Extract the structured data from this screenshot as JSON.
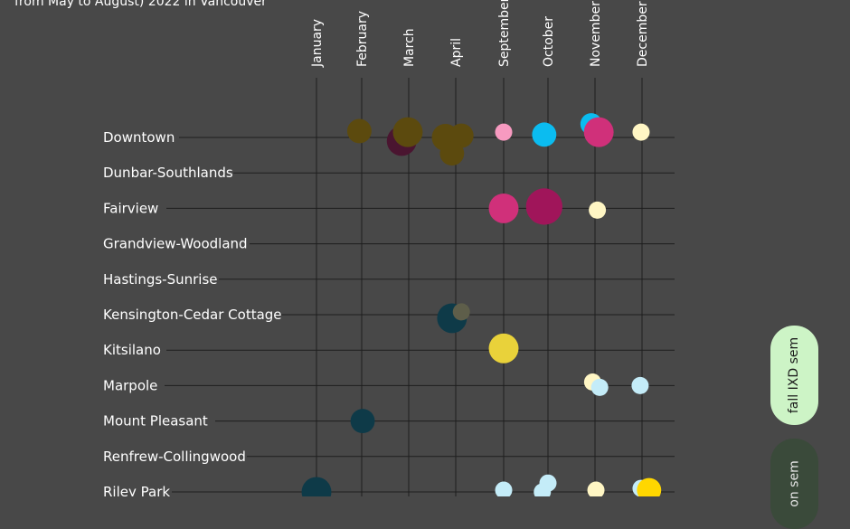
{
  "subtitle": "from May to August) 2022 in Vancouver",
  "legend": {
    "fall": {
      "label": "fall IXD sem",
      "color": "#cdf4c6"
    },
    "other": {
      "label": "on sem",
      "color": "#3a4a3a"
    }
  },
  "chart_data": {
    "type": "scatter",
    "grid": true,
    "months": [
      "January",
      "February",
      "March",
      "April",
      "September",
      "October",
      "November",
      "December"
    ],
    "neighbourhoods": [
      "Downtown",
      "Dunbar-Southlands",
      "Fairview",
      "Grandview-Woodland",
      "Hastings-Sunrise",
      "Kensington-Cedar Cottage",
      "Kitsilano",
      "Marpole",
      "Mount Pleasant",
      "Renfrew-Collingwood",
      "Riley Park"
    ],
    "points": [
      {
        "month": "February",
        "row": "Downtown",
        "dx": -0.05,
        "dy": -0.18,
        "size": 2,
        "color": "#5c4a0e"
      },
      {
        "month": "March",
        "row": "Downtown",
        "dx": -0.15,
        "dy": 0.1,
        "size": 3,
        "color": "#4a1530"
      },
      {
        "month": "March",
        "row": "Downtown",
        "dx": -0.02,
        "dy": -0.15,
        "size": 3,
        "color": "#5c4a0e"
      },
      {
        "month": "April",
        "row": "Downtown",
        "dx": -0.22,
        "dy": 0.0,
        "size": 2.5,
        "color": "#5c4a0e"
      },
      {
        "month": "April",
        "row": "Downtown",
        "dx": 0.12,
        "dy": -0.05,
        "size": 2,
        "color": "#5c4a0e"
      },
      {
        "month": "April",
        "row": "Downtown",
        "dx": -0.08,
        "dy": 0.45,
        "size": 2,
        "color": "#5c4a0e"
      },
      {
        "month": "September",
        "row": "Downtown",
        "dx": 0.0,
        "dy": -0.15,
        "size": 1,
        "color": "#f79ac0"
      },
      {
        "month": "October",
        "row": "Downtown",
        "dx": -0.08,
        "dy": -0.08,
        "size": 2,
        "color": "#0bbcf0"
      },
      {
        "month": "November",
        "row": "Downtown",
        "dx": -0.08,
        "dy": -0.38,
        "size": 1.6,
        "color": "#0bbcf0"
      },
      {
        "month": "November",
        "row": "Downtown",
        "dx": 0.08,
        "dy": -0.15,
        "size": 3,
        "color": "#d0307a"
      },
      {
        "month": "December",
        "row": "Downtown",
        "dx": -0.02,
        "dy": -0.15,
        "size": 1,
        "color": "#fff6c4"
      },
      {
        "month": "September",
        "row": "Fairview",
        "dx": 0.0,
        "dy": 0.0,
        "size": 3,
        "color": "#d0307a"
      },
      {
        "month": "October",
        "row": "Fairview",
        "dx": -0.08,
        "dy": -0.05,
        "size": 4.5,
        "color": "#a0155a"
      },
      {
        "month": "November",
        "row": "Fairview",
        "dx": 0.05,
        "dy": 0.05,
        "size": 1,
        "color": "#fff6c4"
      },
      {
        "month": "April",
        "row": "Kensington-Cedar Cottage",
        "dx": -0.08,
        "dy": 0.1,
        "size": 3,
        "color": "#0e3a48"
      },
      {
        "month": "April",
        "row": "Kensington-Cedar Cottage",
        "dx": 0.12,
        "dy": -0.08,
        "size": 1,
        "color": "#5e5e4a"
      },
      {
        "month": "September",
        "row": "Kitsilano",
        "dx": 0.0,
        "dy": -0.05,
        "size": 3,
        "color": "#e9d23a"
      },
      {
        "month": "November",
        "row": "Marpole",
        "dx": -0.05,
        "dy": -0.1,
        "size": 1,
        "color": "#fff6c4"
      },
      {
        "month": "November",
        "row": "Marpole",
        "dx": 0.1,
        "dy": 0.05,
        "size": 1,
        "color": "#c4ecf8"
      },
      {
        "month": "December",
        "row": "Marpole",
        "dx": -0.04,
        "dy": 0.0,
        "size": 1,
        "color": "#c4ecf8"
      },
      {
        "month": "February",
        "row": "Mount Pleasant",
        "dx": 0.02,
        "dy": 0.0,
        "size": 2,
        "color": "#0e3a48"
      },
      {
        "month": "January",
        "row": "Riley Park",
        "dx": 0.0,
        "dy": 0.0,
        "size": 3,
        "color": "#0e3a48"
      },
      {
        "month": "September",
        "row": "Riley Park",
        "dx": 0.0,
        "dy": -0.05,
        "size": 1,
        "color": "#c4ecf8"
      },
      {
        "month": "October",
        "row": "Riley Park",
        "dx": 0.0,
        "dy": -0.25,
        "size": 1,
        "color": "#c4ecf8"
      },
      {
        "month": "October",
        "row": "Riley Park",
        "dx": -0.12,
        "dy": 0.0,
        "size": 1,
        "color": "#c4ecf8"
      },
      {
        "month": "November",
        "row": "Riley Park",
        "dx": 0.02,
        "dy": -0.05,
        "size": 1,
        "color": "#fff6c4"
      },
      {
        "month": "December",
        "row": "Riley Park",
        "dx": -0.02,
        "dy": -0.1,
        "size": 1,
        "color": "#c4ecf8"
      },
      {
        "month": "December",
        "row": "Riley Park",
        "dx": 0.15,
        "dy": -0.05,
        "size": 2,
        "color": "#ffd700"
      }
    ]
  }
}
